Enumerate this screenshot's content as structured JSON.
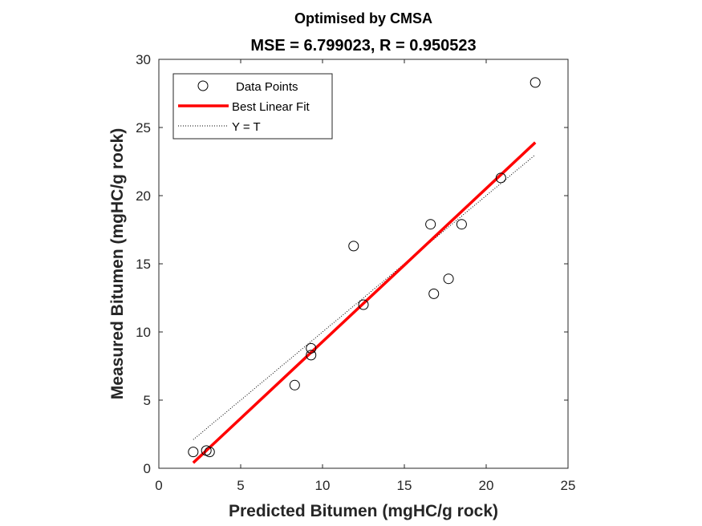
{
  "chart_data": {
    "type": "scatter",
    "title": "Optimised by CMSA",
    "subtitle": "MSE = 6.799023, R = 0.950523",
    "xlabel": "Predicted Bitumen (mgHC/g rock)",
    "ylabel": "Measured Bitumen (mgHC/g rock)",
    "xlim": [
      0,
      25
    ],
    "ylim": [
      0,
      30
    ],
    "xticks": [
      0,
      5,
      10,
      15,
      20,
      25
    ],
    "yticks": [
      0,
      5,
      10,
      15,
      20,
      25,
      30
    ],
    "grid": false,
    "legend_position": "top-left",
    "series": [
      {
        "name": "Data Points",
        "kind": "scatter",
        "marker": "open-circle",
        "color": "#000000",
        "x": [
          2.1,
          2.9,
          3.1,
          8.3,
          9.3,
          9.3,
          11.9,
          12.5,
          16.6,
          16.8,
          17.7,
          18.5,
          20.9,
          23.0
        ],
        "y": [
          1.2,
          1.3,
          1.2,
          6.1,
          8.8,
          8.3,
          16.3,
          12.0,
          17.9,
          12.8,
          13.9,
          17.9,
          21.3,
          28.3
        ]
      },
      {
        "name": "Best Linear Fit",
        "kind": "line",
        "color": "#ff0000",
        "x": [
          2.1,
          23.0
        ],
        "y": [
          0.4,
          23.9
        ]
      },
      {
        "name": "Y = T",
        "kind": "dotted-line",
        "color": "#000000",
        "x": [
          2.1,
          23.0
        ],
        "y": [
          2.1,
          23.0
        ]
      }
    ]
  }
}
